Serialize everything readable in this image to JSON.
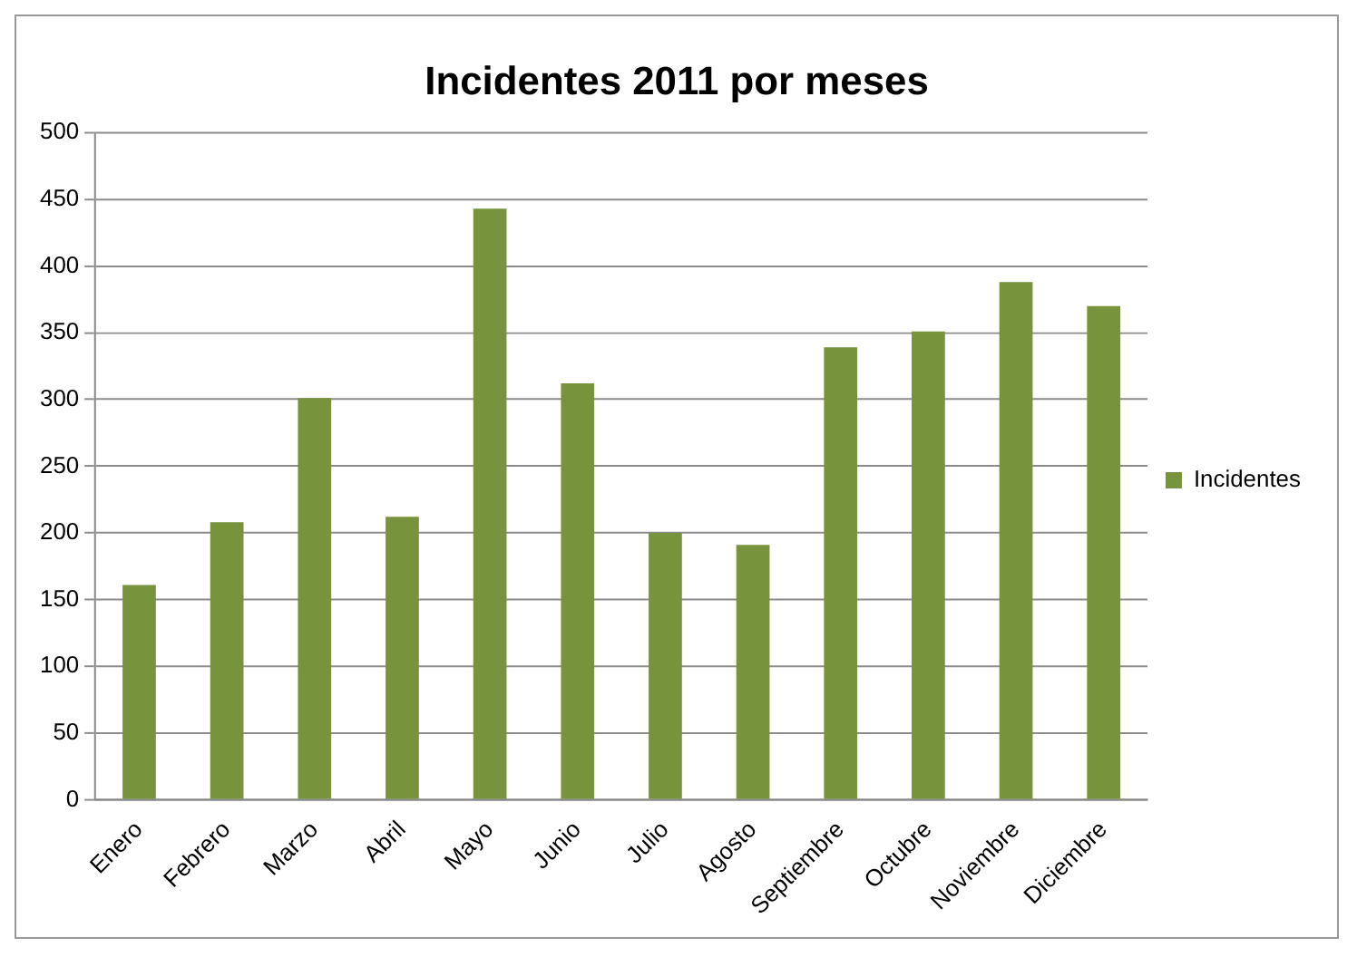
{
  "chart_data": {
    "type": "bar",
    "title": "Incidentes 2011 por meses",
    "categories": [
      "Enero",
      "Febrero",
      "Marzo",
      "Abril",
      "Mayo",
      "Junio",
      "Julio",
      "Agosto",
      "Septiembre",
      "Octubre",
      "Noviembre",
      "Diciembre"
    ],
    "series": [
      {
        "name": "Incidentes",
        "color": "#77933c",
        "values": [
          161,
          208,
          301,
          212,
          443,
          312,
          200,
          191,
          339,
          351,
          388,
          370
        ]
      }
    ],
    "ylim": [
      0,
      500
    ],
    "yticks": [
      0,
      50,
      100,
      150,
      200,
      250,
      300,
      350,
      400,
      450,
      500
    ],
    "grid": "y",
    "legend": "right"
  }
}
